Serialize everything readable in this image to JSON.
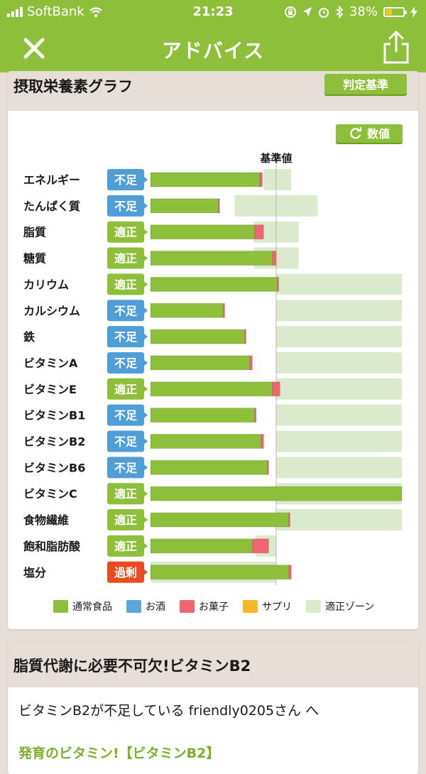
{
  "status_bar": {
    "carrier": "SoftBank",
    "time": "21:23",
    "battery": "38%",
    "battery_level": 0.38
  },
  "nav": {
    "title": "アドバイス"
  },
  "graph_card": {
    "title": "摂取栄養素グラフ",
    "judge_button": "判定基準",
    "value_button": "数値"
  },
  "chart_data": {
    "type": "bar",
    "orientation": "horizontal",
    "stacked": true,
    "reference_label": "基準値",
    "categories": [
      "エネルギー",
      "たんぱく質",
      "脂質",
      "糖質",
      "カリウム",
      "カルシウム",
      "鉄",
      "ビタミンA",
      "ビタミンE",
      "ビタミンB1",
      "ビタミンB2",
      "ビタミンB6",
      "ビタミンC",
      "食物繊維",
      "飽和脂肪酸",
      "塩分"
    ],
    "status": [
      "不足",
      "不足",
      "適正",
      "適正",
      "適正",
      "不足",
      "不足",
      "不足",
      "適正",
      "不足",
      "不足",
      "不足",
      "適正",
      "適正",
      "適正",
      "過剰"
    ],
    "series": [
      {
        "name": "通常食品",
        "values": [
          87,
          54,
          83,
          97,
          101,
          58,
          75,
          79,
          97,
          83,
          88,
          93,
          200,
          110,
          81,
          110
        ]
      },
      {
        "name": "お酒",
        "values": [
          0,
          0,
          0,
          0,
          0,
          0,
          0,
          0,
          0,
          0,
          0,
          0,
          0,
          0,
          0,
          0
        ]
      },
      {
        "name": "お菓子",
        "values": [
          2,
          1,
          7,
          3,
          1,
          1,
          1,
          2,
          6,
          1,
          2,
          1,
          0,
          1,
          13,
          2
        ]
      },
      {
        "name": "サプリ",
        "values": [
          0,
          0,
          0,
          0,
          0,
          0,
          0,
          0,
          0,
          0,
          0,
          0,
          0,
          0,
          0,
          0
        ]
      }
    ],
    "optimal_zone": [
      [
        90,
        112
      ],
      [
        67,
        133
      ],
      [
        82,
        118
      ],
      [
        82,
        118
      ],
      [
        100,
        200
      ],
      [
        100,
        200
      ],
      [
        100,
        200
      ],
      [
        100,
        200
      ],
      [
        100,
        200
      ],
      [
        100,
        200
      ],
      [
        100,
        200
      ],
      [
        100,
        200
      ],
      [
        100,
        200
      ],
      [
        100,
        200
      ],
      [
        84,
        100
      ],
      [
        0,
        100
      ]
    ],
    "reference_value": 100,
    "xlim": [
      0,
      200
    ],
    "legend": [
      "通常食品",
      "お酒",
      "お菓子",
      "サプリ",
      "適正ゾーン"
    ],
    "legend_position": "bottom",
    "colors": {
      "通常食品": "#8dbf3a",
      "お酒": "#5ca8dc",
      "お菓子": "#ef6672",
      "サプリ": "#f6b829",
      "適正ゾーン": "#dbe9cd",
      "不足": "#4f9ed8",
      "適正": "#8dbf3a",
      "過剰": "#ea4b1f"
    }
  },
  "advice_card": {
    "title": "脂質代謝に必要不可欠!ビタミンB2",
    "body": "ビタミンB2が不足している friendly0205さん へ",
    "link": "発育のビタミン!【ビタミンB2】"
  }
}
